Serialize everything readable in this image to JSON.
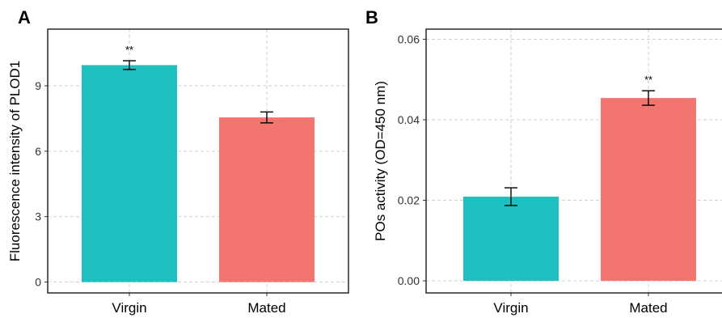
{
  "chart_data": [
    {
      "panel_label": "A",
      "type": "bar",
      "categories": [
        "Virgin",
        "Mated"
      ],
      "values": [
        9.95,
        7.55
      ],
      "errors": [
        0.2,
        0.25
      ],
      "significance": [
        "**",
        ""
      ],
      "bar_colors": [
        "#1ebfbf",
        "#f47570"
      ],
      "ylabel": "Fluorescence intensity of PLOD1",
      "xlabel": "",
      "ylim": [
        -0.5,
        11.6
      ],
      "yticks": [
        0,
        3,
        6,
        9
      ],
      "ytick_labels": [
        "0",
        "3",
        "6",
        "9"
      ],
      "grid": true
    },
    {
      "panel_label": "B",
      "type": "bar",
      "categories": [
        "Virgin",
        "Mated"
      ],
      "values": [
        0.0209,
        0.0454
      ],
      "errors": [
        0.0022,
        0.0018
      ],
      "significance": [
        "",
        "**"
      ],
      "bar_colors": [
        "#1ebfbf",
        "#f47570"
      ],
      "ylabel": "POs activity (OD=450 nm)",
      "xlabel": "",
      "ylim": [
        -0.003,
        0.0625
      ],
      "yticks": [
        0,
        0.02,
        0.04,
        0.06
      ],
      "ytick_labels": [
        "0.00",
        "0.02",
        "0.04",
        "0.06"
      ],
      "grid": true
    }
  ]
}
